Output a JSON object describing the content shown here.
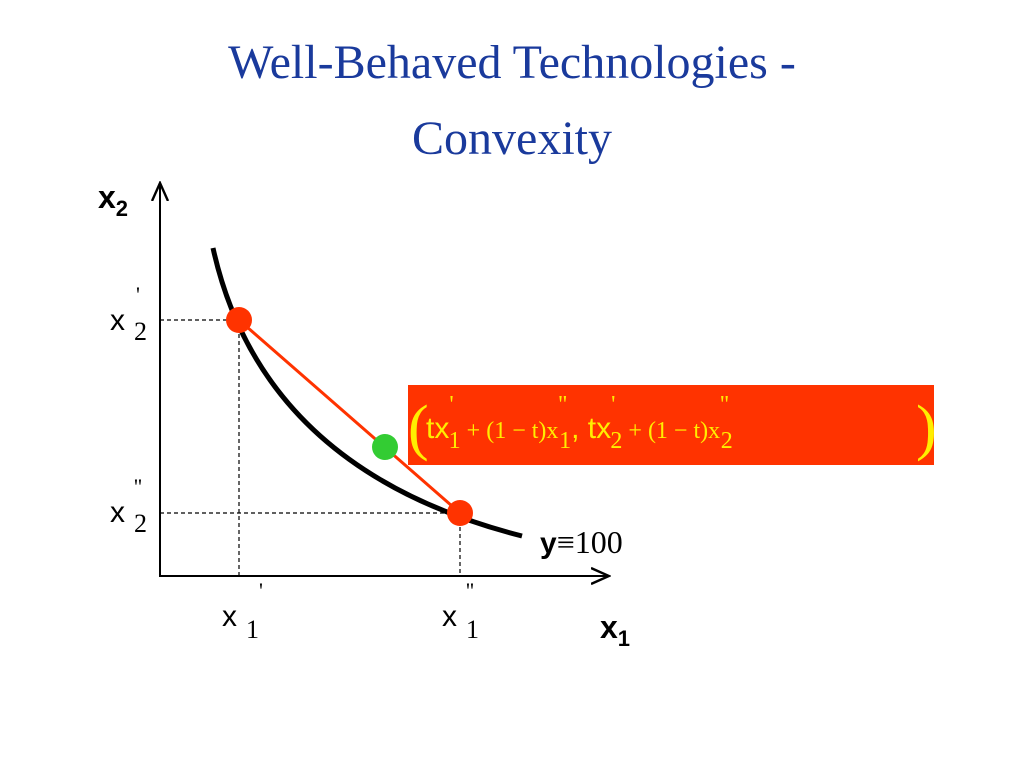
{
  "title": {
    "lines": [
      "Well-Behaved Technologies -",
      "Convexity"
    ]
  },
  "axes": {
    "x": {
      "base": "x",
      "sub": "1"
    },
    "y": {
      "base": "x",
      "sub": "2"
    }
  },
  "tick_labels": [
    {
      "base": "x",
      "prime": "'",
      "sub": "2"
    },
    {
      "base": "x",
      "prime": "''",
      "sub": "2"
    },
    {
      "base": "x",
      "prime": "'",
      "sub": "1"
    },
    {
      "base": "x",
      "prime": "''",
      "sub": "1"
    }
  ],
  "curve_label": {
    "base": "y",
    "rest": "≡100"
  },
  "formula": {
    "parts": [
      "tx",
      "'",
      "1",
      " + (1 − t)x",
      "''",
      "1",
      ", tx",
      "'",
      "2",
      " + (1 − t)x",
      "''",
      "2"
    ]
  }
}
